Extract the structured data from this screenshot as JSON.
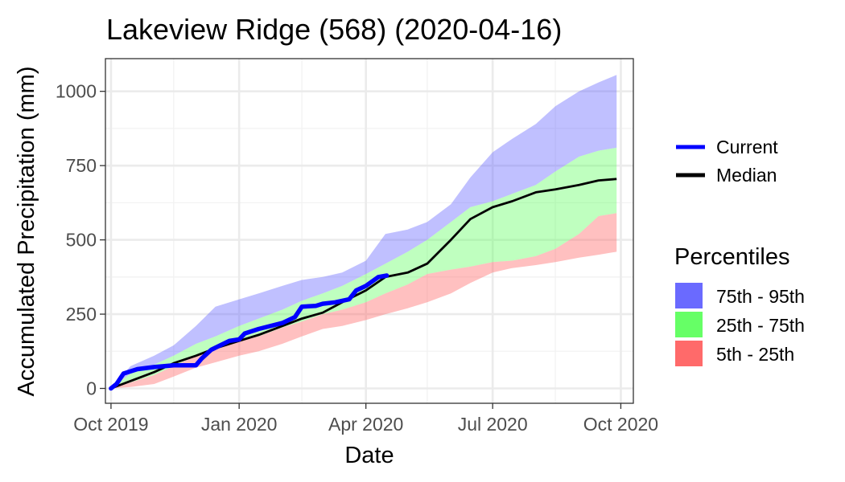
{
  "chart_data": {
    "type": "area",
    "title": "Lakeview Ridge (568) (2020-04-16)",
    "xlabel": "Date",
    "ylabel": "Accumulated Precipitation (mm)",
    "x_ticks": [
      "Oct 2019",
      "Jan 2020",
      "Apr 2020",
      "Jul 2020",
      "Oct 2020"
    ],
    "y_ticks": [
      0,
      250,
      500,
      750,
      1000
    ],
    "xlim": [
      "2019-09-27",
      "2020-10-10"
    ],
    "ylim": [
      -50,
      1110
    ],
    "grid": true,
    "legend_lines": [
      {
        "name": "Current",
        "color": "#0000ff"
      },
      {
        "name": "Median",
        "color": "#000000"
      }
    ],
    "legend_title": "Percentiles",
    "legend_bands": [
      {
        "name": "75th - 95th",
        "color": "#6a6aff"
      },
      {
        "name": "25th - 75th",
        "color": "#66ff66"
      },
      {
        "name": "5th - 25th",
        "color": "#ff6a6a"
      }
    ],
    "x": [
      "2019-10-01",
      "2019-10-15",
      "2019-11-01",
      "2019-11-15",
      "2019-12-01",
      "2019-12-15",
      "2020-01-01",
      "2020-01-15",
      "2020-02-01",
      "2020-02-15",
      "2020-03-01",
      "2020-03-15",
      "2020-04-01",
      "2020-04-15",
      "2020-05-01",
      "2020-05-15",
      "2020-06-01",
      "2020-06-15",
      "2020-07-01",
      "2020-07-15",
      "2020-08-01",
      "2020-08-15",
      "2020-09-01",
      "2020-09-15",
      "2020-09-28"
    ],
    "series": [
      {
        "name": "p5",
        "values": [
          0,
          5,
          15,
          40,
          70,
          88,
          110,
          125,
          150,
          175,
          200,
          210,
          230,
          250,
          270,
          290,
          320,
          355,
          390,
          405,
          415,
          425,
          440,
          450,
          460
        ]
      },
      {
        "name": "p25",
        "values": [
          0,
          20,
          45,
          75,
          110,
          130,
          160,
          175,
          205,
          225,
          250,
          265,
          290,
          320,
          350,
          385,
          400,
          410,
          425,
          430,
          445,
          470,
          520,
          580,
          590
        ]
      },
      {
        "name": "p75",
        "values": [
          0,
          50,
          80,
          110,
          150,
          175,
          210,
          235,
          265,
          295,
          320,
          345,
          385,
          420,
          460,
          500,
          560,
          610,
          630,
          655,
          685,
          730,
          780,
          800,
          810
        ]
      },
      {
        "name": "p95",
        "values": [
          0,
          75,
          110,
          145,
          210,
          275,
          300,
          320,
          345,
          365,
          375,
          390,
          430,
          520,
          535,
          560,
          620,
          710,
          795,
          840,
          890,
          950,
          1000,
          1030,
          1055
        ]
      },
      {
        "name": "Median",
        "values": [
          0,
          25,
          55,
          85,
          110,
          135,
          160,
          180,
          210,
          235,
          255,
          290,
          330,
          375,
          390,
          420,
          500,
          570,
          610,
          630,
          660,
          670,
          685,
          700,
          705
        ]
      }
    ],
    "current": {
      "name": "Current",
      "x": [
        "2019-10-01",
        "2019-10-05",
        "2019-10-10",
        "2019-10-20",
        "2019-11-01",
        "2019-11-15",
        "2019-12-01",
        "2019-12-05",
        "2019-12-12",
        "2019-12-25",
        "2020-01-01",
        "2020-01-05",
        "2020-01-15",
        "2020-02-01",
        "2020-02-10",
        "2020-02-15",
        "2020-02-25",
        "2020-03-01",
        "2020-03-10",
        "2020-03-20",
        "2020-03-25",
        "2020-04-01",
        "2020-04-10",
        "2020-04-16"
      ],
      "values": [
        0,
        15,
        50,
        65,
        72,
        78,
        78,
        100,
        130,
        160,
        165,
        185,
        200,
        220,
        240,
        275,
        278,
        285,
        290,
        300,
        330,
        345,
        375,
        380
      ]
    }
  }
}
